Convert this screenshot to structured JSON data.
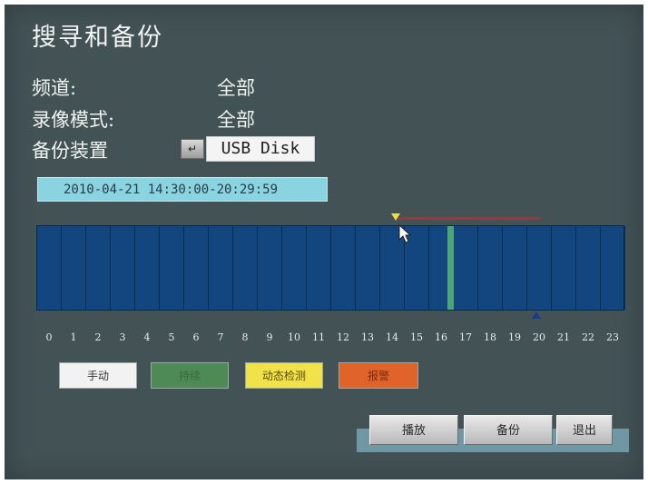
{
  "title": "搜寻和备份",
  "fields": {
    "channel_label": "频道:",
    "channel_value": "全部",
    "record_mode_label": "录像模式:",
    "record_mode_value": "全部",
    "backup_device_label": "备份装置",
    "backup_device_enter_icon": "↵",
    "backup_device_value": "USB Disk"
  },
  "time_range": "2010-04-21 14:30:00-20:29:59",
  "timeline": {
    "hours": [
      "0",
      "1",
      "2",
      "3",
      "4",
      "5",
      "6",
      "7",
      "8",
      "9",
      "10",
      "11",
      "12",
      "13",
      "14",
      "15",
      "16",
      "17",
      "18",
      "19",
      "20",
      "21",
      "22",
      "23"
    ],
    "recording_color": "#4aa674",
    "background_color": "#13467e",
    "selection_color": "#8c3d46"
  },
  "legend": [
    {
      "label": "手动",
      "color": "#f2f2f2",
      "text_color": "#333333"
    },
    {
      "label": "持续",
      "color": "#4e8a56",
      "text_color": "#3a6a3e"
    },
    {
      "label": "动态检测",
      "color": "#f2e24a",
      "text_color": "#5a4a10"
    },
    {
      "label": "报警",
      "color": "#e0642a",
      "text_color": "#7a2a10"
    }
  ],
  "buttons": {
    "play": "播放",
    "backup": "备份",
    "exit": "退出"
  }
}
